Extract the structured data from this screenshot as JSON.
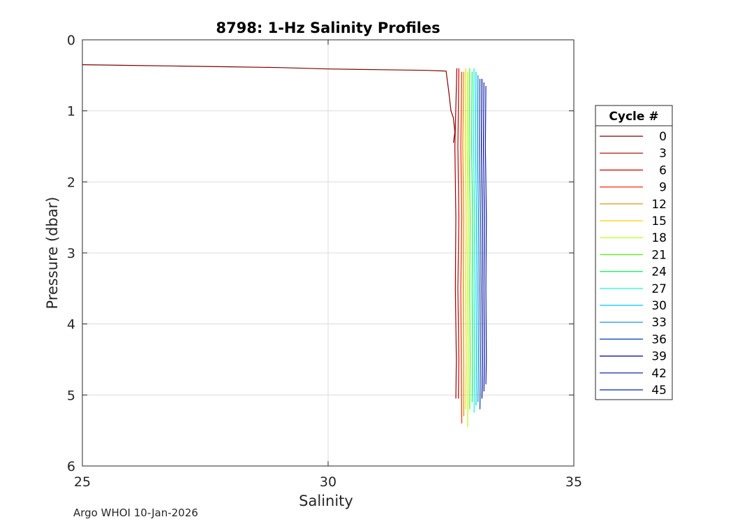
{
  "chart_data": {
    "type": "line",
    "title": "8798: 1-Hz Salinity Profiles",
    "xlabel": "Salinity",
    "ylabel": "Pressure (dbar)",
    "xlim": [
      25,
      35
    ],
    "ylim": [
      0,
      6
    ],
    "y_reversed": true,
    "xticks": [
      "25",
      "30",
      "35"
    ],
    "yticks": [
      "0",
      "1",
      "2",
      "3",
      "4",
      "5",
      "6"
    ],
    "grid": true,
    "legend_title": "Cycle #",
    "legend_position": "right",
    "series": [
      {
        "name": "0",
        "color": "#7f0000",
        "points": [
          [
            25.0,
            0.35
          ],
          [
            26.0,
            0.36
          ],
          [
            27.0,
            0.37
          ],
          [
            28.0,
            0.38
          ],
          [
            29.0,
            0.39
          ],
          [
            30.0,
            0.41
          ],
          [
            31.0,
            0.42
          ],
          [
            32.0,
            0.43
          ],
          [
            32.4,
            0.44
          ],
          [
            32.45,
            0.7
          ],
          [
            32.5,
            1.0
          ],
          [
            32.55,
            1.1
          ],
          [
            32.58,
            1.3
          ],
          [
            32.55,
            1.45
          ]
        ]
      },
      {
        "name": "3",
        "color": "#a00000",
        "points": [
          [
            32.62,
            0.4
          ],
          [
            32.58,
            1.5
          ],
          [
            32.6,
            2.5
          ],
          [
            32.59,
            3.5
          ],
          [
            32.61,
            4.5
          ],
          [
            32.6,
            5.05
          ]
        ]
      },
      {
        "name": "6",
        "color": "#d00000",
        "points": [
          [
            32.66,
            0.4
          ],
          [
            32.64,
            1.5
          ],
          [
            32.66,
            2.5
          ],
          [
            32.64,
            3.5
          ],
          [
            32.66,
            4.5
          ],
          [
            32.65,
            5.05
          ]
        ]
      },
      {
        "name": "9",
        "color": "#ff2a00",
        "points": [
          [
            32.72,
            0.45
          ],
          [
            32.7,
            1.5
          ],
          [
            32.72,
            2.5
          ],
          [
            32.7,
            3.5
          ],
          [
            32.71,
            4.5
          ],
          [
            32.72,
            5.4
          ]
        ]
      },
      {
        "name": "12",
        "color": "#d98b00",
        "points": [
          [
            32.76,
            0.45
          ],
          [
            32.74,
            1.5
          ],
          [
            32.76,
            2.5
          ],
          [
            32.75,
            3.5
          ],
          [
            32.76,
            4.5
          ],
          [
            32.76,
            5.3
          ]
        ]
      },
      {
        "name": "15",
        "color": "#ffd400",
        "points": [
          [
            32.8,
            0.4
          ],
          [
            32.79,
            1.5
          ],
          [
            32.81,
            2.5
          ],
          [
            32.8,
            3.5
          ],
          [
            32.81,
            4.5
          ],
          [
            32.8,
            5.2
          ]
        ]
      },
      {
        "name": "18",
        "color": "#b5ff00",
        "points": [
          [
            32.84,
            0.45
          ],
          [
            32.83,
            1.5
          ],
          [
            32.85,
            2.5
          ],
          [
            32.84,
            3.5
          ],
          [
            32.85,
            4.5
          ],
          [
            32.84,
            5.45
          ]
        ]
      },
      {
        "name": "21",
        "color": "#4cff00",
        "points": [
          [
            32.88,
            0.4
          ],
          [
            32.87,
            1.5
          ],
          [
            32.89,
            2.5
          ],
          [
            32.88,
            3.5
          ],
          [
            32.89,
            4.5
          ],
          [
            32.88,
            5.2
          ]
        ]
      },
      {
        "name": "24",
        "color": "#00ff55",
        "points": [
          [
            32.93,
            0.45
          ],
          [
            32.92,
            1.5
          ],
          [
            32.94,
            2.5
          ],
          [
            32.93,
            3.5
          ],
          [
            32.94,
            4.5
          ],
          [
            32.93,
            5.1
          ]
        ]
      },
      {
        "name": "27",
        "color": "#00ffc8",
        "points": [
          [
            32.97,
            0.4
          ],
          [
            32.96,
            1.5
          ],
          [
            32.98,
            2.5
          ],
          [
            32.97,
            3.5
          ],
          [
            32.98,
            4.5
          ],
          [
            32.97,
            5.25
          ]
        ]
      },
      {
        "name": "30",
        "color": "#00c8ff",
        "points": [
          [
            33.01,
            0.45
          ],
          [
            33.0,
            1.5
          ],
          [
            33.02,
            2.5
          ],
          [
            33.01,
            3.5
          ],
          [
            33.02,
            4.5
          ],
          [
            33.01,
            5.15
          ]
        ]
      },
      {
        "name": "33",
        "color": "#0090d0",
        "points": [
          [
            33.05,
            0.5
          ],
          [
            33.04,
            1.5
          ],
          [
            33.06,
            2.5
          ],
          [
            33.05,
            3.5
          ],
          [
            33.06,
            4.5
          ],
          [
            33.05,
            5.1
          ]
        ]
      },
      {
        "name": "36",
        "color": "#0040b0",
        "points": [
          [
            33.09,
            0.55
          ],
          [
            33.08,
            1.5
          ],
          [
            33.1,
            2.5
          ],
          [
            33.09,
            3.5
          ],
          [
            33.1,
            4.5
          ],
          [
            33.09,
            5.2
          ]
        ]
      },
      {
        "name": "39",
        "color": "#00008f",
        "points": [
          [
            33.13,
            0.55
          ],
          [
            33.12,
            1.5
          ],
          [
            33.14,
            2.5
          ],
          [
            33.13,
            3.5
          ],
          [
            33.14,
            4.5
          ],
          [
            33.13,
            5.05
          ]
        ]
      },
      {
        "name": "42",
        "color": "#0010a0",
        "points": [
          [
            33.17,
            0.6
          ],
          [
            33.16,
            1.5
          ],
          [
            33.18,
            2.5
          ],
          [
            33.17,
            3.5
          ],
          [
            33.18,
            4.5
          ],
          [
            33.17,
            4.95
          ]
        ]
      },
      {
        "name": "45",
        "color": "#0020c8",
        "points": [
          [
            33.21,
            0.65
          ],
          [
            33.2,
            1.5
          ],
          [
            33.22,
            2.5
          ],
          [
            33.21,
            3.5
          ],
          [
            33.22,
            4.5
          ],
          [
            33.21,
            4.85
          ]
        ]
      }
    ]
  },
  "footer": {
    "text": "Argo WHOI 10-Jan-2026"
  }
}
